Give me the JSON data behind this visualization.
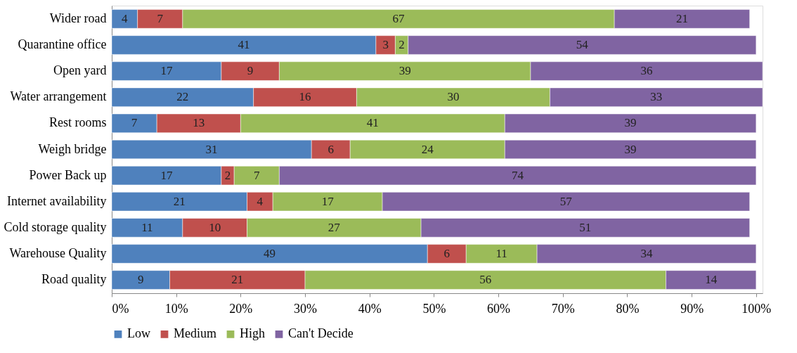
{
  "chart_data": {
    "type": "bar",
    "orientation": "horizontal",
    "stacked": true,
    "data_labels": true,
    "legend": "bottom",
    "grid": false,
    "categories": [
      "Wider road",
      "Quarantine office",
      "Open yard",
      "Water arrangement",
      "Rest rooms",
      "Weigh bridge",
      "Power Back up",
      "Internet availability",
      "Cold storage quality",
      "Warehouse Quality",
      "Road quality"
    ],
    "series": [
      {
        "name": "Low",
        "color": "#4f81bd",
        "values": [
          4,
          41,
          17,
          22,
          7,
          31,
          17,
          21,
          11,
          49,
          9
        ]
      },
      {
        "name": "Medium",
        "color": "#c0504d",
        "values": [
          7,
          3,
          9,
          16,
          13,
          6,
          2,
          4,
          10,
          6,
          21
        ]
      },
      {
        "name": "High",
        "color": "#9bbb59",
        "values": [
          67,
          2,
          39,
          30,
          41,
          24,
          7,
          17,
          27,
          11,
          56
        ]
      },
      {
        "name": "Can't Decide",
        "color": "#8064a2",
        "values": [
          21,
          54,
          36,
          33,
          39,
          39,
          74,
          57,
          51,
          34,
          14
        ]
      }
    ],
    "xlim": [
      0,
      101
    ],
    "xticks": [
      {
        "value": 0,
        "label": "0%"
      },
      {
        "value": 10,
        "label": "10%"
      },
      {
        "value": 20,
        "label": "20%"
      },
      {
        "value": 30,
        "label": "30%"
      },
      {
        "value": 40,
        "label": "40%"
      },
      {
        "value": 50,
        "label": "50%"
      },
      {
        "value": 60,
        "label": "60%"
      },
      {
        "value": 70,
        "label": "70%"
      },
      {
        "value": 80,
        "label": "80%"
      },
      {
        "value": 90,
        "label": "90%"
      },
      {
        "value": 100,
        "label": "100%"
      }
    ]
  }
}
